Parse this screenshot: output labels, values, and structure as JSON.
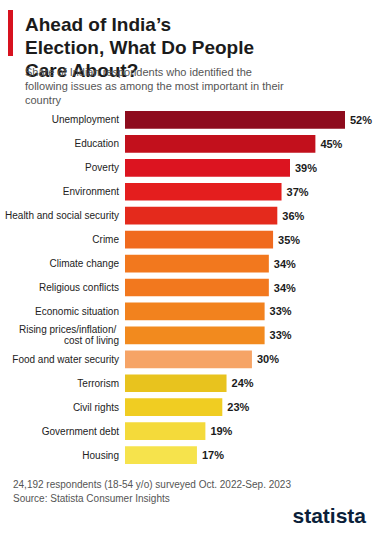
{
  "chart_data": {
    "type": "bar",
    "orientation": "horizontal",
    "title": "Ahead of India’s Election, What Do People Care About?",
    "subtitle": "Share of Indian respondents who identified the following issues as among the most important in their country",
    "categories": [
      "Unemployment",
      "Education",
      "Poverty",
      "Environment",
      "Health and social security",
      "Crime",
      "Climate change",
      "Religious conflicts",
      "Economic situation",
      "Rising prices/inflation/ cost of living",
      "Food and water security",
      "Terrorism",
      "Civil rights",
      "Government debt",
      "Housing"
    ],
    "values": [
      52,
      45,
      39,
      37,
      36,
      35,
      34,
      34,
      33,
      33,
      30,
      24,
      23,
      19,
      17
    ],
    "value_labels": [
      "52%",
      "45%",
      "39%",
      "37%",
      "36%",
      "35%",
      "34%",
      "34%",
      "33%",
      "33%",
      "30%",
      "24%",
      "23%",
      "19%",
      "17%"
    ],
    "colors": [
      "#8e0b1d",
      "#c2101c",
      "#dc1420",
      "#e41e1e",
      "#e42a1c",
      "#f06a1e",
      "#f2781e",
      "#f2781e",
      "#f2821e",
      "#f28a1e",
      "#f6a466",
      "#e8c31e",
      "#f0cd22",
      "#f4da3a",
      "#f6e34c"
    ],
    "xlim": [
      0,
      52
    ],
    "tick_labels": "y",
    "grid": false,
    "data_labels": true,
    "notes": [
      "24,192 respondents (18-54 y/o) surveyed Oct. 2022-Sep. 2023",
      "Source: Statista Consumer Insights"
    ],
    "logo": "statista"
  }
}
